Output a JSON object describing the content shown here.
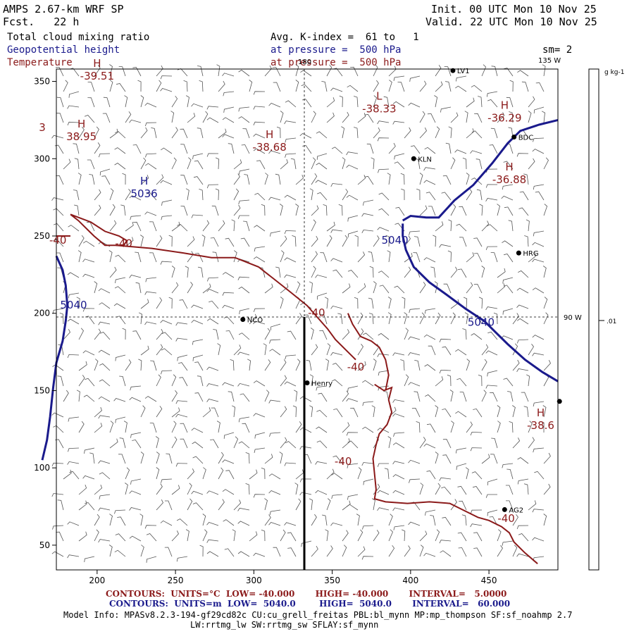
{
  "header": {
    "model": "AMPS 2.67-km WRF SP",
    "fcst": "Fcst.   22 h",
    "init": "Init. 00 UTC Mon 10 Nov 25",
    "valid": "Valid. 22 UTC Mon 10 Nov 25",
    "field_cloud": "Total cloud mixing ratio",
    "field_height": "Geopotential height",
    "field_temp": "Temperature",
    "avg_k": "Avg. K-index =  61 to   1",
    "pressure_1": "at pressure =  500 hPa",
    "pressure_2": "at pressure =  500 hPa",
    "sm": "sm= 2"
  },
  "map": {
    "lon_label_180": "180",
    "lon_label_135w": "135 W",
    "lon_label_90w": "90 W",
    "colorbar_unit": "g kg-1",
    "colorbar_value": ".01",
    "stations": [
      {
        "name": "NCO",
        "x": 293,
        "y": 196
      },
      {
        "name": "Henry",
        "x": 334,
        "y": 155
      },
      {
        "name": "KLN",
        "x": 402,
        "y": 300
      },
      {
        "name": "HRG",
        "x": 469,
        "y": 239
      },
      {
        "name": "BDC",
        "x": 466,
        "y": 314
      },
      {
        "name": "AG2",
        "x": 460,
        "y": 73
      },
      {
        "name": "LV1",
        "x": 427,
        "y": 357
      },
      {
        "name": "",
        "x": 495,
        "y": 143
      }
    ],
    "h_labels": [
      {
        "kind": "H",
        "value": "-39.51",
        "x": 200,
        "y": 352,
        "color": "#8b1a1a"
      },
      {
        "kind": "H",
        "value": "38.95",
        "x": 190,
        "y": 313,
        "color": "#8b1a1a"
      },
      {
        "kind": "H",
        "value": "-38.68",
        "x": 310,
        "y": 306,
        "color": "#8b1a1a"
      },
      {
        "kind": "L",
        "value": "-38.33",
        "x": 380,
        "y": 331,
        "color": "#8b1a1a"
      },
      {
        "kind": "H",
        "value": "-36.29",
        "x": 460,
        "y": 325,
        "color": "#8b1a1a"
      },
      {
        "kind": "H",
        "value": "-36.88",
        "x": 463,
        "y": 285,
        "color": "#8b1a1a"
      },
      {
        "kind": "H",
        "value": "-38.6",
        "x": 483,
        "y": 126,
        "color": "#8b1a1a"
      },
      {
        "kind": "H",
        "value": "5036",
        "x": 230,
        "y": 276,
        "color": "#1a1a8c"
      }
    ],
    "contour_labels": [
      {
        "text": "3",
        "x": 165,
        "y": 318,
        "color": "#8b1a1a"
      },
      {
        "text": "-40",
        "x": 175,
        "y": 245,
        "color": "#8b1a1a"
      },
      {
        "text": "-40",
        "x": 217,
        "y": 243,
        "color": "#8b1a1a"
      },
      {
        "text": "-40",
        "x": 340,
        "y": 198,
        "color": "#8b1a1a"
      },
      {
        "text": "-40",
        "x": 365,
        "y": 163,
        "color": "#8b1a1a"
      },
      {
        "text": "-40",
        "x": 357,
        "y": 102,
        "color": "#8b1a1a"
      },
      {
        "text": "-40",
        "x": 461,
        "y": 65,
        "color": "#8b1a1a"
      },
      {
        "text": "5040",
        "x": 185,
        "y": 203,
        "color": "#1a1a8c"
      },
      {
        "text": "5040",
        "x": 390,
        "y": 245,
        "color": "#1a1a8c"
      },
      {
        "text": "5040",
        "x": 445,
        "y": 192,
        "color": "#1a1a8c"
      }
    ]
  },
  "chart_data": {
    "type": "scatter",
    "title": "",
    "xlabel": "",
    "ylabel": "",
    "xlim": [
      174,
      494
    ],
    "ylim": [
      34,
      358
    ],
    "x_ticks": [
      200,
      250,
      300,
      350,
      400,
      450
    ],
    "y_ticks": [
      50,
      100,
      150,
      200,
      250,
      300,
      350
    ],
    "grid": "dashed crosshair at 180 and 90 W",
    "colors": {
      "temperature": "#8b1a1a",
      "height": "#1a1a8c",
      "cross_section": "#000000"
    },
    "series": [
      {
        "name": "Temperature",
        "kind": "contour",
        "level": -40,
        "points": [
          [
            174,
            250
          ],
          [
            183,
            250
          ],
          [
            174,
            250
          ]
        ]
      },
      {
        "name": "Temperature",
        "kind": "contour",
        "level": -40,
        "points": [
          [
            183,
            264
          ],
          [
            196,
            259
          ],
          [
            205,
            253
          ],
          [
            214,
            250
          ],
          [
            219,
            247
          ],
          [
            217,
            244
          ],
          [
            205,
            244
          ],
          [
            198,
            250
          ],
          [
            188,
            260
          ],
          [
            183,
            264
          ]
        ]
      },
      {
        "name": "Temperature",
        "kind": "contour",
        "level": -40,
        "points": [
          [
            212,
            244
          ],
          [
            235,
            242
          ],
          [
            255,
            239
          ],
          [
            273,
            236
          ],
          [
            288,
            236
          ],
          [
            303,
            230
          ],
          [
            313,
            222
          ],
          [
            323,
            214
          ],
          [
            334,
            205
          ],
          [
            340,
            198
          ],
          [
            347,
            190
          ],
          [
            352,
            183
          ],
          [
            358,
            177
          ],
          [
            363,
            172
          ],
          [
            365,
            170
          ]
        ]
      },
      {
        "name": "Temperature",
        "kind": "contour",
        "level": -40,
        "points": [
          [
            377,
            154
          ],
          [
            383,
            150
          ],
          [
            388,
            152
          ],
          [
            386,
            144
          ],
          [
            388,
            136
          ],
          [
            385,
            128
          ],
          [
            380,
            122
          ],
          [
            378,
            115
          ],
          [
            376,
            106
          ],
          [
            377,
            96
          ],
          [
            378,
            86
          ],
          [
            377,
            80
          ],
          [
            384,
            78
          ],
          [
            398,
            77
          ],
          [
            412,
            78
          ],
          [
            425,
            77
          ],
          [
            435,
            72
          ],
          [
            443,
            68
          ],
          [
            450,
            66
          ],
          [
            458,
            62
          ],
          [
            463,
            58
          ],
          [
            466,
            52
          ],
          [
            473,
            45
          ],
          [
            481,
            38
          ]
        ]
      },
      {
        "name": "Temperature",
        "kind": "contour",
        "level": -40,
        "points": [
          [
            360,
            200
          ],
          [
            363,
            193
          ],
          [
            368,
            185
          ],
          [
            375,
            182
          ],
          [
            380,
            178
          ],
          [
            384,
            170
          ],
          [
            386,
            160
          ],
          [
            384,
            150
          ]
        ]
      },
      {
        "name": "Geopotential height",
        "kind": "contour",
        "level": 5040,
        "points": [
          [
            174,
            237
          ],
          [
            178,
            228
          ],
          [
            180,
            218
          ],
          [
            181,
            205
          ],
          [
            180,
            195
          ],
          [
            178,
            182
          ],
          [
            174,
            168
          ],
          [
            172,
            152
          ],
          [
            170,
            133
          ],
          [
            168,
            118
          ],
          [
            165,
            105
          ]
        ]
      },
      {
        "name": "Geopotential height",
        "kind": "contour",
        "level": 5040,
        "points": [
          [
            395,
            260
          ],
          [
            400,
            263
          ],
          [
            410,
            262
          ],
          [
            418,
            262
          ],
          [
            428,
            273
          ],
          [
            440,
            283
          ],
          [
            452,
            297
          ],
          [
            462,
            310
          ],
          [
            470,
            318
          ],
          [
            482,
            322
          ],
          [
            494,
            325
          ]
        ]
      },
      {
        "name": "Geopotential height",
        "kind": "contour",
        "level": 5040,
        "points": [
          [
            395,
            258
          ],
          [
            395,
            250
          ],
          [
            397,
            241
          ],
          [
            402,
            230
          ],
          [
            412,
            220
          ],
          [
            423,
            212
          ],
          [
            435,
            203
          ],
          [
            447,
            195
          ],
          [
            455,
            187
          ],
          [
            462,
            180
          ],
          [
            473,
            170
          ],
          [
            484,
            162
          ],
          [
            494,
            156
          ]
        ]
      }
    ]
  },
  "footer": {
    "red_line": "CONTOURS:  UNITS=°C  LOW= -40.000       HIGH= -40.000       INTERVAL=   5.0000",
    "blue_line": "CONTOURS:  UNITS=m  LOW=  5040.0        HIGH=  5040.0       INTERVAL=   60.000",
    "model_info": "Model Info: MPASv8.2.3-194-gf29cd82c CU:cu_grell_freitas PBL:bl_mynn MP:mp_thompson SF:sf_noahmp 2.7",
    "model_info_2": "LW:rrtmg_lw SW:rrtmg_sw SFLAY:sf_mynn"
  }
}
